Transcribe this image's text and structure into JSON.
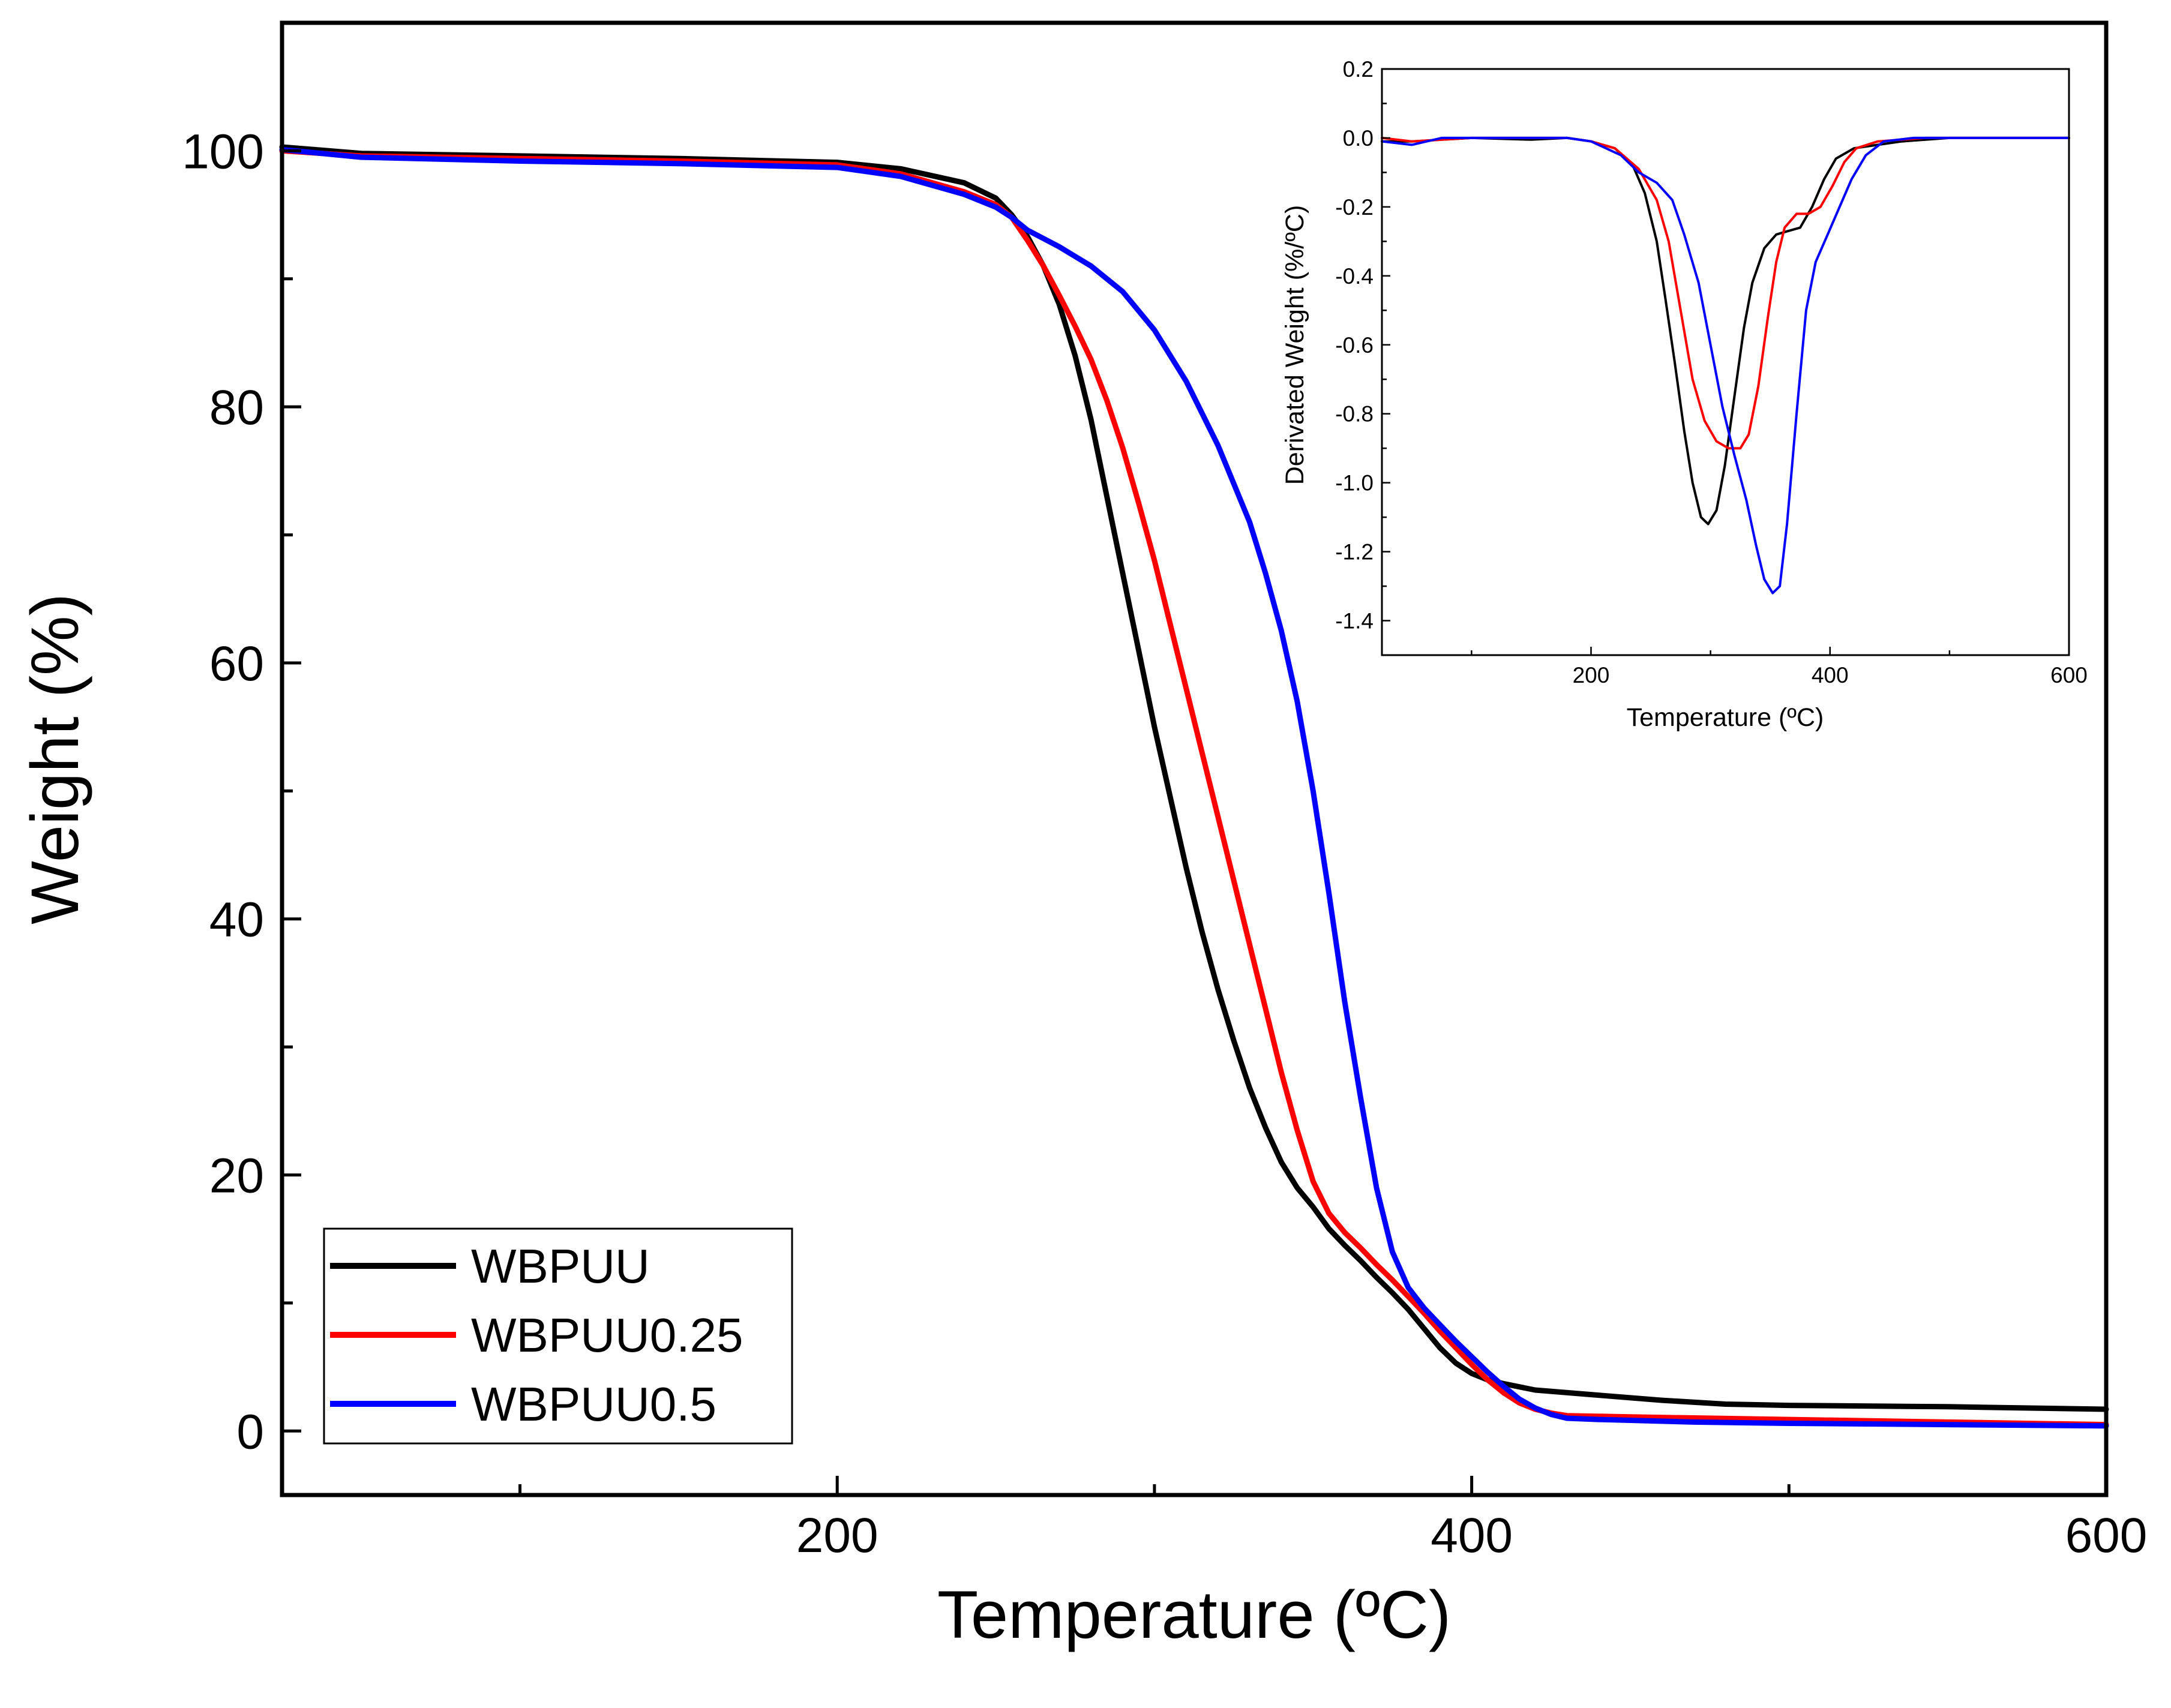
{
  "chart_data": [
    {
      "type": "line",
      "title": "",
      "xlabel": "Temperature (ºC)",
      "ylabel": "Weight (%)",
      "xlim": [
        25,
        600
      ],
      "ylim": [
        -5,
        110
      ],
      "xticks": [
        200,
        400,
        600
      ],
      "xtick_labels": [
        "200",
        "400",
        "600"
      ],
      "yticks": [
        0,
        20,
        40,
        60,
        80,
        100
      ],
      "ytick_labels": [
        "0",
        "20",
        "40",
        "60",
        "80",
        "100"
      ],
      "grid": false,
      "legend_position": "bottom-left",
      "series": [
        {
          "name": "WBPUU",
          "color": "#000000",
          "points": [
            [
              25,
              100.3
            ],
            [
              50,
              99.8
            ],
            [
              100,
              99.6
            ],
            [
              150,
              99.4
            ],
            [
              200,
              99.1
            ],
            [
              220,
              98.6
            ],
            [
              240,
              97.5
            ],
            [
              250,
              96.3
            ],
            [
              255,
              95.0
            ],
            [
              260,
              93.3
            ],
            [
              265,
              91.0
            ],
            [
              270,
              88.0
            ],
            [
              275,
              84.0
            ],
            [
              280,
              79.0
            ],
            [
              285,
              73.0
            ],
            [
              290,
              67.0
            ],
            [
              295,
              61.0
            ],
            [
              300,
              55.0
            ],
            [
              305,
              49.5
            ],
            [
              310,
              44.0
            ],
            [
              315,
              39.0
            ],
            [
              320,
              34.5
            ],
            [
              325,
              30.5
            ],
            [
              330,
              26.8
            ],
            [
              335,
              23.7
            ],
            [
              340,
              21.0
            ],
            [
              345,
              19.0
            ],
            [
              350,
              17.5
            ],
            [
              355,
              15.8
            ],
            [
              360,
              14.5
            ],
            [
              365,
              13.3
            ],
            [
              370,
              12.0
            ],
            [
              375,
              10.8
            ],
            [
              380,
              9.5
            ],
            [
              385,
              8.0
            ],
            [
              390,
              6.5
            ],
            [
              395,
              5.3
            ],
            [
              400,
              4.5
            ],
            [
              405,
              4.0
            ],
            [
              410,
              3.7
            ],
            [
              420,
              3.2
            ],
            [
              440,
              2.8
            ],
            [
              460,
              2.4
            ],
            [
              480,
              2.1
            ],
            [
              500,
              2.0
            ],
            [
              550,
              1.9
            ],
            [
              600,
              1.7
            ]
          ]
        },
        {
          "name": "WBPUU0.25",
          "color": "#ff0000",
          "points": [
            [
              25,
              100.0
            ],
            [
              50,
              99.6
            ],
            [
              100,
              99.4
            ],
            [
              150,
              99.2
            ],
            [
              200,
              98.9
            ],
            [
              220,
              98.2
            ],
            [
              240,
              96.8
            ],
            [
              250,
              95.8
            ],
            [
              255,
              94.8
            ],
            [
              260,
              93.0
            ],
            [
              265,
              91.0
            ],
            [
              270,
              88.7
            ],
            [
              275,
              86.3
            ],
            [
              280,
              83.7
            ],
            [
              285,
              80.5
            ],
            [
              290,
              76.8
            ],
            [
              295,
              72.5
            ],
            [
              300,
              68.0
            ],
            [
              305,
              63.0
            ],
            [
              310,
              58.0
            ],
            [
              315,
              53.0
            ],
            [
              320,
              48.0
            ],
            [
              325,
              43.0
            ],
            [
              330,
              38.0
            ],
            [
              335,
              33.0
            ],
            [
              340,
              28.0
            ],
            [
              345,
              23.5
            ],
            [
              350,
              19.5
            ],
            [
              355,
              17.0
            ],
            [
              360,
              15.5
            ],
            [
              365,
              14.3
            ],
            [
              370,
              13.0
            ],
            [
              375,
              11.8
            ],
            [
              380,
              10.5
            ],
            [
              385,
              9.2
            ],
            [
              390,
              7.8
            ],
            [
              395,
              6.5
            ],
            [
              400,
              5.2
            ],
            [
              405,
              4.0
            ],
            [
              410,
              3.0
            ],
            [
              415,
              2.2
            ],
            [
              420,
              1.7
            ],
            [
              425,
              1.4
            ],
            [
              430,
              1.2
            ],
            [
              450,
              1.1
            ],
            [
              500,
              0.9
            ],
            [
              550,
              0.7
            ],
            [
              600,
              0.5
            ]
          ]
        },
        {
          "name": "WBPUU0.5",
          "color": "#0000ff",
          "points": [
            [
              25,
              100.1
            ],
            [
              50,
              99.5
            ],
            [
              100,
              99.2
            ],
            [
              150,
              99.0
            ],
            [
              200,
              98.7
            ],
            [
              220,
              98.0
            ],
            [
              240,
              96.6
            ],
            [
              250,
              95.6
            ],
            [
              255,
              94.8
            ],
            [
              260,
              93.8
            ],
            [
              270,
              92.5
            ],
            [
              280,
              91.0
            ],
            [
              290,
              89.0
            ],
            [
              300,
              86.0
            ],
            [
              310,
              82.0
            ],
            [
              320,
              77.0
            ],
            [
              330,
              71.0
            ],
            [
              335,
              67.0
            ],
            [
              340,
              62.5
            ],
            [
              345,
              57.0
            ],
            [
              350,
              50.0
            ],
            [
              355,
              42.0
            ],
            [
              360,
              33.5
            ],
            [
              365,
              26.0
            ],
            [
              370,
              19.0
            ],
            [
              375,
              14.0
            ],
            [
              380,
              11.2
            ],
            [
              385,
              9.6
            ],
            [
              390,
              8.3
            ],
            [
              395,
              7.0
            ],
            [
              400,
              5.8
            ],
            [
              405,
              4.6
            ],
            [
              410,
              3.5
            ],
            [
              415,
              2.5
            ],
            [
              420,
              1.8
            ],
            [
              425,
              1.3
            ],
            [
              430,
              1.0
            ],
            [
              440,
              0.9
            ],
            [
              470,
              0.7
            ],
            [
              500,
              0.6
            ],
            [
              550,
              0.5
            ],
            [
              600,
              0.4
            ]
          ]
        }
      ]
    },
    {
      "type": "line",
      "title": "",
      "xlabel": "Temperature (ºC)",
      "ylabel": "Derivated Weight (%/ºC)",
      "xlim": [
        25,
        600
      ],
      "ylim": [
        -1.5,
        0.2
      ],
      "xticks": [
        200,
        400,
        600
      ],
      "xtick_labels": [
        "200",
        "400",
        "600"
      ],
      "yticks": [
        0.2,
        0.0,
        -0.2,
        -0.4,
        -0.6,
        -0.8,
        -1.0,
        -1.2,
        -1.4
      ],
      "ytick_labels": [
        "0.2",
        "0.0",
        "-0.2",
        "-0.4",
        "-0.6",
        "-0.8",
        "-1.0",
        "-1.2",
        "-1.4"
      ],
      "grid": false,
      "series": [
        {
          "name": "WBPUU",
          "color": "#000000",
          "points": [
            [
              25,
              -0.01
            ],
            [
              50,
              -0.01
            ],
            [
              100,
              0.0
            ],
            [
              150,
              -0.005
            ],
            [
              180,
              0.0
            ],
            [
              200,
              -0.01
            ],
            [
              220,
              -0.03
            ],
            [
              235,
              -0.08
            ],
            [
              245,
              -0.16
            ],
            [
              255,
              -0.3
            ],
            [
              262,
              -0.46
            ],
            [
              270,
              -0.65
            ],
            [
              278,
              -0.85
            ],
            [
              285,
              -1.0
            ],
            [
              292,
              -1.1
            ],
            [
              298,
              -1.12
            ],
            [
              305,
              -1.08
            ],
            [
              312,
              -0.95
            ],
            [
              320,
              -0.75
            ],
            [
              328,
              -0.55
            ],
            [
              335,
              -0.42
            ],
            [
              345,
              -0.32
            ],
            [
              355,
              -0.28
            ],
            [
              365,
              -0.27
            ],
            [
              375,
              -0.26
            ],
            [
              385,
              -0.2
            ],
            [
              395,
              -0.12
            ],
            [
              405,
              -0.06
            ],
            [
              420,
              -0.03
            ],
            [
              440,
              -0.02
            ],
            [
              460,
              -0.01
            ],
            [
              500,
              0.0
            ],
            [
              550,
              0.0
            ],
            [
              600,
              0.0
            ]
          ]
        },
        {
          "name": "WBPUU0.25",
          "color": "#ff0000",
          "points": [
            [
              25,
              0.0
            ],
            [
              50,
              -0.01
            ],
            [
              100,
              0.0
            ],
            [
              150,
              0.0
            ],
            [
              180,
              0.0
            ],
            [
              200,
              -0.01
            ],
            [
              220,
              -0.03
            ],
            [
              240,
              -0.09
            ],
            [
              255,
              -0.18
            ],
            [
              265,
              -0.3
            ],
            [
              275,
              -0.5
            ],
            [
              285,
              -0.7
            ],
            [
              295,
              -0.82
            ],
            [
              305,
              -0.88
            ],
            [
              315,
              -0.9
            ],
            [
              325,
              -0.9
            ],
            [
              332,
              -0.86
            ],
            [
              340,
              -0.72
            ],
            [
              348,
              -0.52
            ],
            [
              355,
              -0.36
            ],
            [
              362,
              -0.26
            ],
            [
              372,
              -0.22
            ],
            [
              382,
              -0.22
            ],
            [
              392,
              -0.2
            ],
            [
              402,
              -0.14
            ],
            [
              412,
              -0.07
            ],
            [
              422,
              -0.03
            ],
            [
              440,
              -0.01
            ],
            [
              480,
              0.0
            ],
            [
              520,
              0.0
            ],
            [
              600,
              0.0
            ]
          ]
        },
        {
          "name": "WBPUU0.5",
          "color": "#0000ff",
          "points": [
            [
              25,
              -0.01
            ],
            [
              50,
              -0.02
            ],
            [
              75,
              0.0
            ],
            [
              100,
              0.0
            ],
            [
              150,
              0.0
            ],
            [
              180,
              0.0
            ],
            [
              200,
              -0.01
            ],
            [
              225,
              -0.05
            ],
            [
              240,
              -0.1
            ],
            [
              255,
              -0.13
            ],
            [
              268,
              -0.18
            ],
            [
              278,
              -0.28
            ],
            [
              290,
              -0.42
            ],
            [
              300,
              -0.6
            ],
            [
              310,
              -0.78
            ],
            [
              320,
              -0.92
            ],
            [
              330,
              -1.05
            ],
            [
              338,
              -1.18
            ],
            [
              345,
              -1.28
            ],
            [
              352,
              -1.32
            ],
            [
              358,
              -1.3
            ],
            [
              364,
              -1.12
            ],
            [
              372,
              -0.8
            ],
            [
              380,
              -0.5
            ],
            [
              388,
              -0.36
            ],
            [
              398,
              -0.28
            ],
            [
              408,
              -0.2
            ],
            [
              418,
              -0.12
            ],
            [
              430,
              -0.05
            ],
            [
              445,
              -0.01
            ],
            [
              470,
              0.0
            ],
            [
              520,
              0.0
            ],
            [
              600,
              0.0
            ]
          ]
        }
      ]
    }
  ]
}
